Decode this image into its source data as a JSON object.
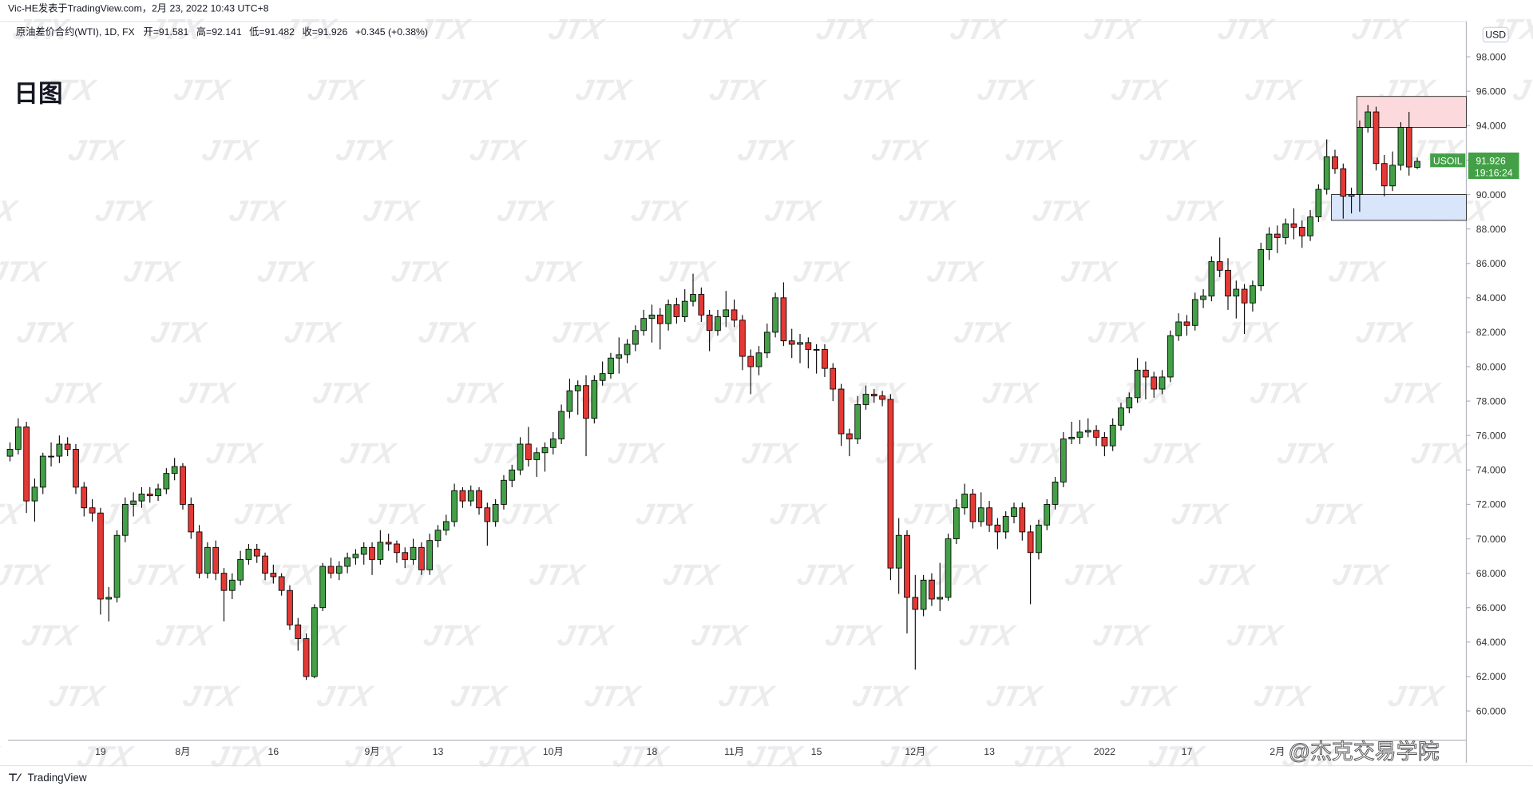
{
  "header": "Vic-HE发表于TradingView.com，2月 23, 2022 10:43 UTC+8",
  "symbol_line": "原油差价合约(WTI), 1D, FX",
  "ohlc_labels": [
    "开=",
    "高=",
    "低=",
    "收="
  ],
  "change": "+0.345 (+0.38%)",
  "period_title": "日图",
  "currency": "USD",
  "symbol": "USOIL",
  "countdown": "19:16:24",
  "watermark": "JTX",
  "brand": "TradingView",
  "author_mark": "@杰克交易学院",
  "chart_data": {
    "type": "candlestick",
    "up_color": "#43a047",
    "down_color": "#e53935",
    "ylim": [
      58.3,
      100.05
    ],
    "yticks": [
      {
        "value": 60,
        "label": "60.000"
      },
      {
        "value": 62,
        "label": "62.000"
      },
      {
        "value": 64,
        "label": "64.000"
      },
      {
        "value": 66,
        "label": "66.000"
      },
      {
        "value": 68,
        "label": "68.000"
      },
      {
        "value": 70,
        "label": "70.000"
      },
      {
        "value": 72,
        "label": "72.000"
      },
      {
        "value": 74,
        "label": "74.000"
      },
      {
        "value": 76,
        "label": "76.000"
      },
      {
        "value": 78,
        "label": "78.000"
      },
      {
        "value": 80,
        "label": "80.000"
      },
      {
        "value": 82,
        "label": "82.000"
      },
      {
        "value": 84,
        "label": "84.000"
      },
      {
        "value": 86,
        "label": "86.000"
      },
      {
        "value": 88,
        "label": "88.000"
      },
      {
        "value": 90,
        "label": "90.000"
      },
      {
        "value": 92,
        "label": "92.000"
      },
      {
        "value": 94,
        "label": "94.000"
      },
      {
        "value": 96,
        "label": "96.000"
      },
      {
        "value": 98,
        "label": "98.000"
      }
    ],
    "zones": [
      {
        "color": "#fbd9dd",
        "values": [
          93.9,
          95.7
        ]
      },
      {
        "color": "#d9e5fb",
        "values": [
          88.5,
          90
        ]
      }
    ],
    "categories": [
      null,
      null,
      null,
      null,
      null,
      null,
      null,
      null,
      null,
      null,
      null,
      "19",
      null,
      null,
      null,
      null,
      null,
      null,
      null,
      null,
      null,
      "8月",
      null,
      null,
      null,
      null,
      null,
      null,
      null,
      null,
      null,
      null,
      "16",
      null,
      null,
      null,
      null,
      null,
      null,
      null,
      null,
      null,
      null,
      null,
      "9月",
      null,
      null,
      null,
      null,
      null,
      null,
      null,
      "13",
      null,
      null,
      null,
      null,
      null,
      null,
      null,
      null,
      null,
      null,
      null,
      null,
      null,
      "10月",
      null,
      null,
      null,
      null,
      null,
      null,
      null,
      null,
      null,
      null,
      null,
      "18",
      null,
      null,
      null,
      null,
      null,
      null,
      null,
      null,
      null,
      "11月",
      null,
      null,
      null,
      null,
      null,
      null,
      null,
      null,
      null,
      "15",
      null,
      null,
      null,
      null,
      null,
      null,
      null,
      null,
      null,
      null,
      null,
      "12月",
      null,
      null,
      null,
      null,
      null,
      null,
      null,
      null,
      "13",
      null,
      null,
      null,
      null,
      null,
      null,
      null,
      null,
      null,
      null,
      null,
      null,
      null,
      "2022",
      null,
      null,
      null,
      null,
      null,
      null,
      null,
      null,
      null,
      "17",
      null,
      null,
      null,
      null,
      null,
      null,
      null,
      null,
      null,
      null,
      "2月",
      null,
      null,
      null,
      null,
      null,
      null,
      null,
      null,
      null,
      null,
      null,
      null,
      null,
      null,
      null,
      null,
      null
    ],
    "ohlc": [
      [
        74.8,
        75.6,
        74.5,
        75.2
      ],
      [
        75.2,
        77,
        74.9,
        76.5
      ],
      [
        76.5,
        76.8,
        71.5,
        72.2
      ],
      [
        72.2,
        73.5,
        71,
        73
      ],
      [
        73,
        75,
        72.6,
        74.8
      ],
      [
        74.8,
        75.6,
        74.2,
        74.8
      ],
      [
        74.8,
        76,
        74.4,
        75.5
      ],
      [
        75.5,
        75.9,
        74.8,
        75.2
      ],
      [
        75.2,
        75.5,
        72.6,
        73
      ],
      [
        73,
        73.3,
        71.3,
        71.8
      ],
      [
        71.8,
        72.3,
        71,
        71.5
      ],
      [
        71.5,
        71.8,
        65.6,
        66.5
      ],
      [
        66.5,
        67.2,
        65.2,
        66.6
      ],
      [
        66.6,
        70.5,
        66.3,
        70.2
      ],
      [
        70.2,
        72.4,
        69.8,
        72
      ],
      [
        72,
        72.7,
        71.3,
        72.2
      ],
      [
        72.2,
        73,
        71.8,
        72.6
      ],
      [
        72.6,
        73,
        72.1,
        72.5
      ],
      [
        72.5,
        73.2,
        72.2,
        72.9
      ],
      [
        72.9,
        74.1,
        72.6,
        73.8
      ],
      [
        73.8,
        74.7,
        73.4,
        74.2
      ],
      [
        74.2,
        74.4,
        71.7,
        72
      ],
      [
        72,
        72.4,
        70,
        70.4
      ],
      [
        70.4,
        70.8,
        67.7,
        68
      ],
      [
        68,
        69.8,
        67.7,
        69.5
      ],
      [
        69.5,
        69.9,
        67.6,
        68
      ],
      [
        68,
        68.3,
        65.2,
        67
      ],
      [
        67,
        68,
        66.5,
        67.6
      ],
      [
        67.6,
        69.3,
        67.3,
        68.8
      ],
      [
        68.8,
        69.7,
        68.5,
        69.4
      ],
      [
        69.4,
        69.7,
        68.6,
        69
      ],
      [
        69,
        69.2,
        67.6,
        68
      ],
      [
        68,
        68.5,
        67.4,
        67.8
      ],
      [
        67.8,
        68,
        66.7,
        67
      ],
      [
        67,
        67.3,
        64.7,
        65
      ],
      [
        65,
        65.4,
        63.5,
        64.2
      ],
      [
        64.2,
        64.5,
        61.8,
        62
      ],
      [
        62,
        66.2,
        61.9,
        66
      ],
      [
        66,
        68.6,
        65.8,
        68.4
      ],
      [
        68.4,
        68.9,
        67.7,
        68
      ],
      [
        68,
        68.7,
        67.6,
        68.4
      ],
      [
        68.4,
        69.2,
        68,
        68.9
      ],
      [
        68.9,
        69.4,
        68.5,
        69.1
      ],
      [
        69.1,
        69.8,
        68.5,
        69.5
      ],
      [
        69.5,
        69.8,
        67.9,
        68.8
      ],
      [
        68.8,
        70.5,
        68.5,
        69.8
      ],
      [
        69.8,
        70.3,
        69.3,
        69.7
      ],
      [
        69.7,
        69.9,
        68.6,
        69.2
      ],
      [
        69.2,
        69.5,
        68.3,
        68.8
      ],
      [
        68.8,
        70,
        68.5,
        69.5
      ],
      [
        69.5,
        69.8,
        67.9,
        68.2
      ],
      [
        68.2,
        70.3,
        67.9,
        69.9
      ],
      [
        69.9,
        70.8,
        69.5,
        70.5
      ],
      [
        70.5,
        71.4,
        70.2,
        71
      ],
      [
        71,
        73.2,
        70.7,
        72.8
      ],
      [
        72.8,
        73,
        71.8,
        72.2
      ],
      [
        72.2,
        73.1,
        71.9,
        72.8
      ],
      [
        72.8,
        73,
        71.4,
        71.8
      ],
      [
        71.8,
        72.1,
        69.6,
        71
      ],
      [
        71,
        72.3,
        70.7,
        72
      ],
      [
        72,
        73.7,
        71.7,
        73.4
      ],
      [
        73.4,
        74.3,
        73,
        74
      ],
      [
        74,
        75.9,
        73.7,
        75.5
      ],
      [
        75.5,
        76.5,
        74.2,
        74.6
      ],
      [
        74.6,
        75.3,
        73.6,
        75
      ],
      [
        75,
        75.6,
        73.9,
        75.3
      ],
      [
        75.3,
        76.2,
        74.9,
        75.8
      ],
      [
        75.8,
        77.8,
        75.5,
        77.4
      ],
      [
        77.4,
        79.3,
        77,
        78.6
      ],
      [
        78.6,
        79.2,
        77.2,
        78.9
      ],
      [
        78.9,
        79.5,
        74.8,
        77
      ],
      [
        77,
        79.5,
        76.7,
        79.2
      ],
      [
        79.2,
        80.3,
        78.9,
        79.6
      ],
      [
        79.6,
        80.8,
        79.3,
        80.5
      ],
      [
        80.5,
        81.7,
        79.6,
        80.7
      ],
      [
        80.7,
        81.6,
        80.2,
        81.3
      ],
      [
        81.3,
        82.4,
        80.9,
        82.1
      ],
      [
        82.1,
        83.3,
        81.8,
        82.8
      ],
      [
        82.8,
        83.6,
        81.4,
        83
      ],
      [
        83,
        83.4,
        81,
        82.5
      ],
      [
        82.5,
        83.9,
        82.1,
        83.6
      ],
      [
        83.6,
        84,
        82.5,
        82.9
      ],
      [
        82.9,
        84.5,
        82.6,
        83.8
      ],
      [
        83.8,
        85.4,
        83.5,
        84.2
      ],
      [
        84.2,
        84.6,
        82.6,
        83
      ],
      [
        83,
        83.3,
        80.9,
        82.1
      ],
      [
        82.1,
        83.3,
        81.8,
        82.9
      ],
      [
        82.9,
        84.4,
        82.3,
        83.3
      ],
      [
        83.3,
        83.9,
        82.3,
        82.7
      ],
      [
        82.7,
        83,
        79.8,
        80.6
      ],
      [
        80.6,
        81,
        78.4,
        80
      ],
      [
        80,
        81.2,
        79.5,
        80.8
      ],
      [
        80.8,
        82.5,
        80.5,
        82
      ],
      [
        82,
        84.3,
        81.7,
        84
      ],
      [
        84,
        84.9,
        81.2,
        81.5
      ],
      [
        81.5,
        82.2,
        80.5,
        81.3
      ],
      [
        81.3,
        81.9,
        80.2,
        81.4
      ],
      [
        81.4,
        81.7,
        79.9,
        81
      ],
      [
        81,
        81.3,
        79.6,
        81
      ],
      [
        81,
        81.3,
        79.4,
        79.9
      ],
      [
        79.9,
        80.2,
        78,
        78.7
      ],
      [
        78.7,
        79,
        75.4,
        76.1
      ],
      [
        76.1,
        76.4,
        74.8,
        75.8
      ],
      [
        75.8,
        78.3,
        75.5,
        77.8
      ],
      [
        77.8,
        78.9,
        77.5,
        78.4
      ],
      [
        78.4,
        78.7,
        77.9,
        78.3
      ],
      [
        78.3,
        78.6,
        77.7,
        78.1
      ],
      [
        78.1,
        78.4,
        67.6,
        68.3
      ],
      [
        68.3,
        71.2,
        66.8,
        70.2
      ],
      [
        70.2,
        70.5,
        64.5,
        66.6
      ],
      [
        66.6,
        67.9,
        62.4,
        65.9
      ],
      [
        65.9,
        67.9,
        65.5,
        67.6
      ],
      [
        67.6,
        68,
        66.1,
        66.5
      ],
      [
        66.5,
        68.6,
        65.8,
        66.6
      ],
      [
        66.6,
        70.3,
        66.4,
        70
      ],
      [
        70,
        72.3,
        69.7,
        71.8
      ],
      [
        71.8,
        73.2,
        71.4,
        72.6
      ],
      [
        72.6,
        72.9,
        70.6,
        71
      ],
      [
        71,
        72.7,
        70.7,
        71.8
      ],
      [
        71.8,
        72.2,
        70.4,
        70.8
      ],
      [
        70.8,
        71.2,
        69.4,
        70.4
      ],
      [
        70.4,
        71.6,
        70,
        71.3
      ],
      [
        71.3,
        72.1,
        70.9,
        71.8
      ],
      [
        71.8,
        72.1,
        69.9,
        70.4
      ],
      [
        70.4,
        70.8,
        66.2,
        69.2
      ],
      [
        69.2,
        71.1,
        68.8,
        70.8
      ],
      [
        70.8,
        72.3,
        70.5,
        72
      ],
      [
        72,
        73.6,
        71.7,
        73.3
      ],
      [
        73.3,
        76.2,
        73,
        75.8
      ],
      [
        75.8,
        76.8,
        75.5,
        75.9
      ],
      [
        75.9,
        76.9,
        75.5,
        76.2
      ],
      [
        76.2,
        77,
        75.9,
        76.3
      ],
      [
        76.3,
        76.6,
        75.4,
        75.9
      ],
      [
        75.9,
        76.2,
        74.8,
        75.4
      ],
      [
        75.4,
        77,
        75.1,
        76.6
      ],
      [
        76.6,
        77.9,
        76.3,
        77.6
      ],
      [
        77.6,
        78.5,
        77.3,
        78.2
      ],
      [
        78.2,
        80.5,
        77.9,
        79.8
      ],
      [
        79.8,
        80.3,
        78.1,
        79.4
      ],
      [
        79.4,
        79.7,
        78.2,
        78.7
      ],
      [
        78.7,
        79.8,
        78.4,
        79.4
      ],
      [
        79.4,
        82.1,
        79.1,
        81.8
      ],
      [
        81.8,
        83.1,
        81.5,
        82.6
      ],
      [
        82.6,
        83,
        81.8,
        82.4
      ],
      [
        82.4,
        84.3,
        82.1,
        83.9
      ],
      [
        83.9,
        84.5,
        83.4,
        84.1
      ],
      [
        84.1,
        86.4,
        83.8,
        86.1
      ],
      [
        86.1,
        87.5,
        85.2,
        85.6
      ],
      [
        85.6,
        86.3,
        83.3,
        84.1
      ],
      [
        84.1,
        85,
        82.8,
        84.5
      ],
      [
        84.5,
        84.8,
        81.9,
        83.7
      ],
      [
        83.7,
        85,
        83.2,
        84.7
      ],
      [
        84.7,
        87.2,
        84.4,
        86.8
      ],
      [
        86.8,
        88.1,
        86.2,
        87.7
      ],
      [
        87.7,
        88.2,
        86.6,
        87.5
      ],
      [
        87.5,
        88.6,
        87.1,
        88.3
      ],
      [
        88.3,
        89.2,
        87.4,
        88.1
      ],
      [
        88.1,
        88.5,
        86.9,
        87.6
      ],
      [
        87.6,
        89.1,
        87.3,
        88.7
      ],
      [
        88.7,
        90.6,
        88.4,
        90.3
      ],
      [
        90.3,
        93.2,
        90,
        92.2
      ],
      [
        92.2,
        92.6,
        91.2,
        91.5
      ],
      [
        91.5,
        91.8,
        88.6,
        89.9
      ],
      [
        89.9,
        90.4,
        88.9,
        90
      ],
      [
        90,
        94.3,
        89,
        93.9
      ],
      [
        93.9,
        95.2,
        93.6,
        94.8
      ],
      [
        94.8,
        95.1,
        91.4,
        91.8
      ],
      [
        91.8,
        92.3,
        89.9,
        90.5
      ],
      [
        90.5,
        92.5,
        90.2,
        91.7
      ],
      [
        91.7,
        94.2,
        91.4,
        93.9
      ],
      [
        93.9,
        94.8,
        91.1,
        91.6
      ],
      [
        91.581,
        92.141,
        91.482,
        91.926
      ]
    ]
  }
}
